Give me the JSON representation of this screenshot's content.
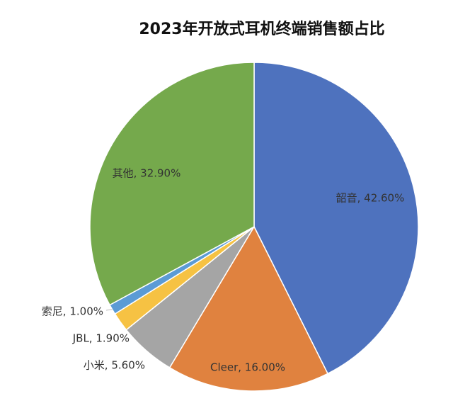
{
  "chart_data": {
    "type": "pie",
    "title": "2023年开放式耳机终端销售额占比",
    "values": [
      42.6,
      16.0,
      5.6,
      1.9,
      1.0,
      32.9
    ],
    "value_labels": [
      "韶音, 42.60%",
      "Cleer, 16.00%",
      "小米, 5.60%",
      "JBL, 1.90%",
      "索尼, 1.00%",
      "其他, 32.90%"
    ],
    "colors": [
      "#4e72be",
      "#e0823f",
      "#a5a5a5",
      "#f6c243",
      "#5b9bd5",
      "#75a94c"
    ]
  }
}
